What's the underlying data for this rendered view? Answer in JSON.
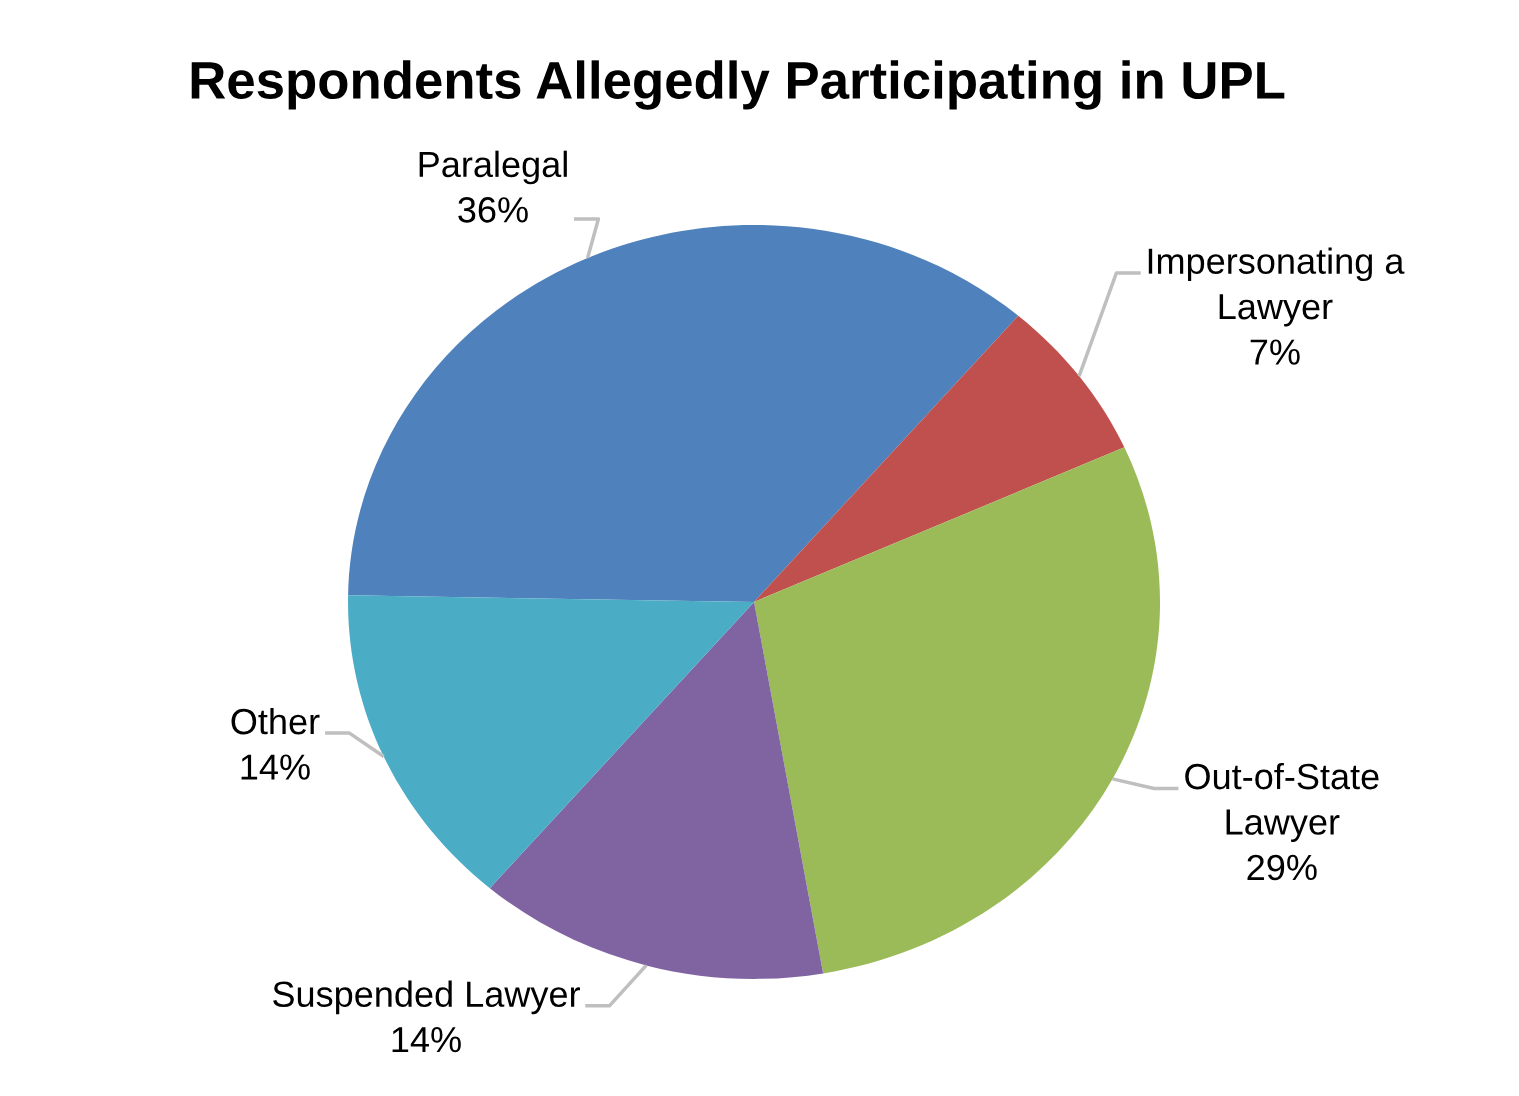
{
  "chart_data": {
    "type": "pie",
    "title": "Respondents Allegedly Participating in UPL",
    "categories": [
      "Paralegal",
      "Impersonating a\nLawyer",
      "Out-of-State\nLawyer",
      "Suspended Lawyer",
      "Other"
    ],
    "values": [
      36,
      7,
      29,
      14,
      14
    ],
    "value_labels": [
      "36%",
      "7%",
      "29%",
      "14%",
      "14%"
    ],
    "colors": [
      "#4f81bd",
      "#c0504d",
      "#9bbb59",
      "#8064a2",
      "#4bacc6"
    ]
  }
}
